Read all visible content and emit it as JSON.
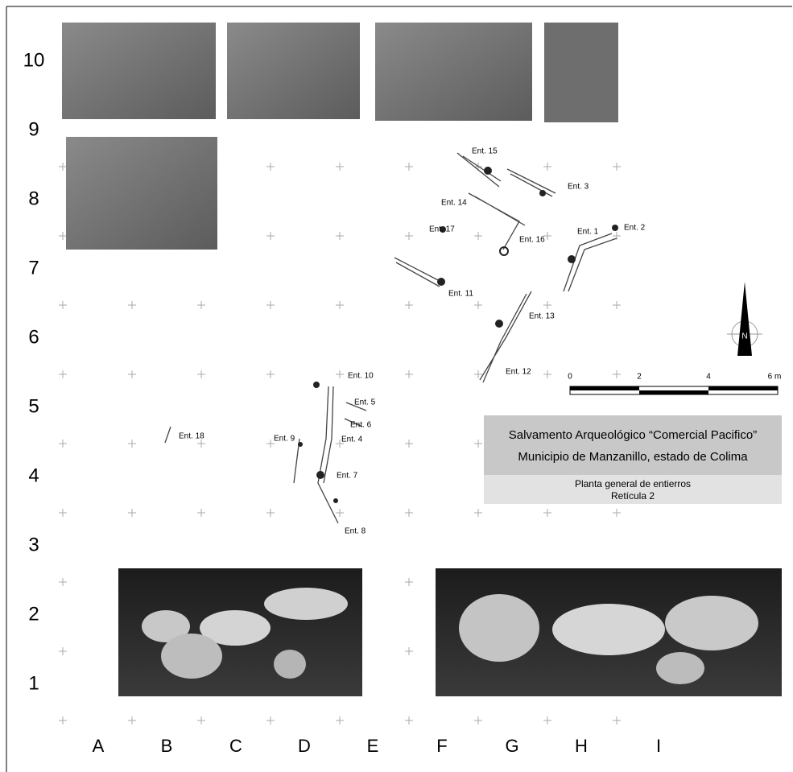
{
  "rows": [
    "10",
    "9",
    "8",
    "7",
    "6",
    "5",
    "4",
    "3",
    "2",
    "1"
  ],
  "columns": [
    "A",
    "B",
    "C",
    "D",
    "E",
    "F",
    "G",
    "H",
    "I"
  ],
  "burials": [
    "Ent. 15",
    "Ent. 3",
    "Ent. 14",
    "Ent. 17",
    "Ent. 16",
    "Ent. 1",
    "Ent. 2",
    "Ent. 11",
    "Ent. 13",
    "Ent. 12",
    "Ent. 10",
    "Ent. 5",
    "Ent. 6",
    "Ent. 9",
    "Ent. 4",
    "Ent. 18",
    "Ent. 7",
    "Ent. 8"
  ],
  "title_block": {
    "line1": "Salvamento Arqueológico “Comercial Pacifico”",
    "line2": "Municipio de Manzanillo, estado de Colima",
    "line3": "Planta general de entierros",
    "line4": "Retícula 2"
  },
  "scale": [
    "0",
    "2",
    "4",
    "6 m"
  ],
  "north": "N"
}
